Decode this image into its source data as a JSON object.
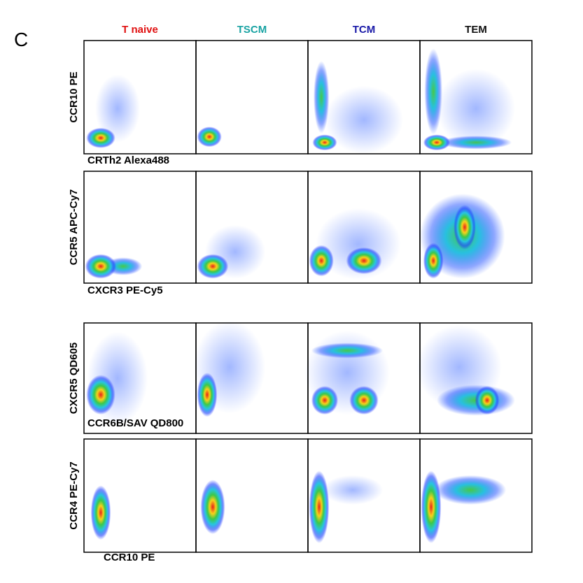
{
  "panel_label": "C",
  "columns": [
    {
      "label": "T naive",
      "color": "#e01010"
    },
    {
      "label": "TSCM",
      "color": "#1aa3a3"
    },
    {
      "label": "TCM",
      "color": "#1a1aa8"
    },
    {
      "label": "TEM",
      "color": "#111111"
    }
  ],
  "rows": [
    {
      "y_label": "CCR10 PE",
      "x_label": "CRTh2 Alexa488"
    },
    {
      "y_label": "CCR5 APC-Cy7",
      "x_label": "CXCR3 PE-Cy5"
    },
    {
      "y_label": "CXCR5 QD605",
      "x_label": "CCR6B/SAV QD800"
    },
    {
      "y_label": "CCR4 PE-Cy7",
      "x_label": "CCR10 PE"
    }
  ]
}
